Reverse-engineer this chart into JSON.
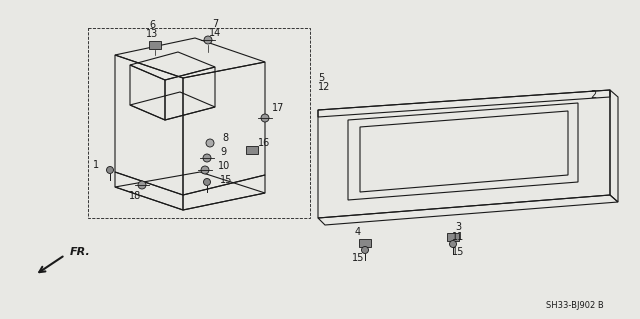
{
  "bg_color": "#e8e8e4",
  "line_color": "#1a1a1a",
  "text_color": "#1a1a1a",
  "diagram_id": "SH33-BJ902 B",
  "figsize": [
    6.4,
    3.19
  ],
  "dpi": 100
}
